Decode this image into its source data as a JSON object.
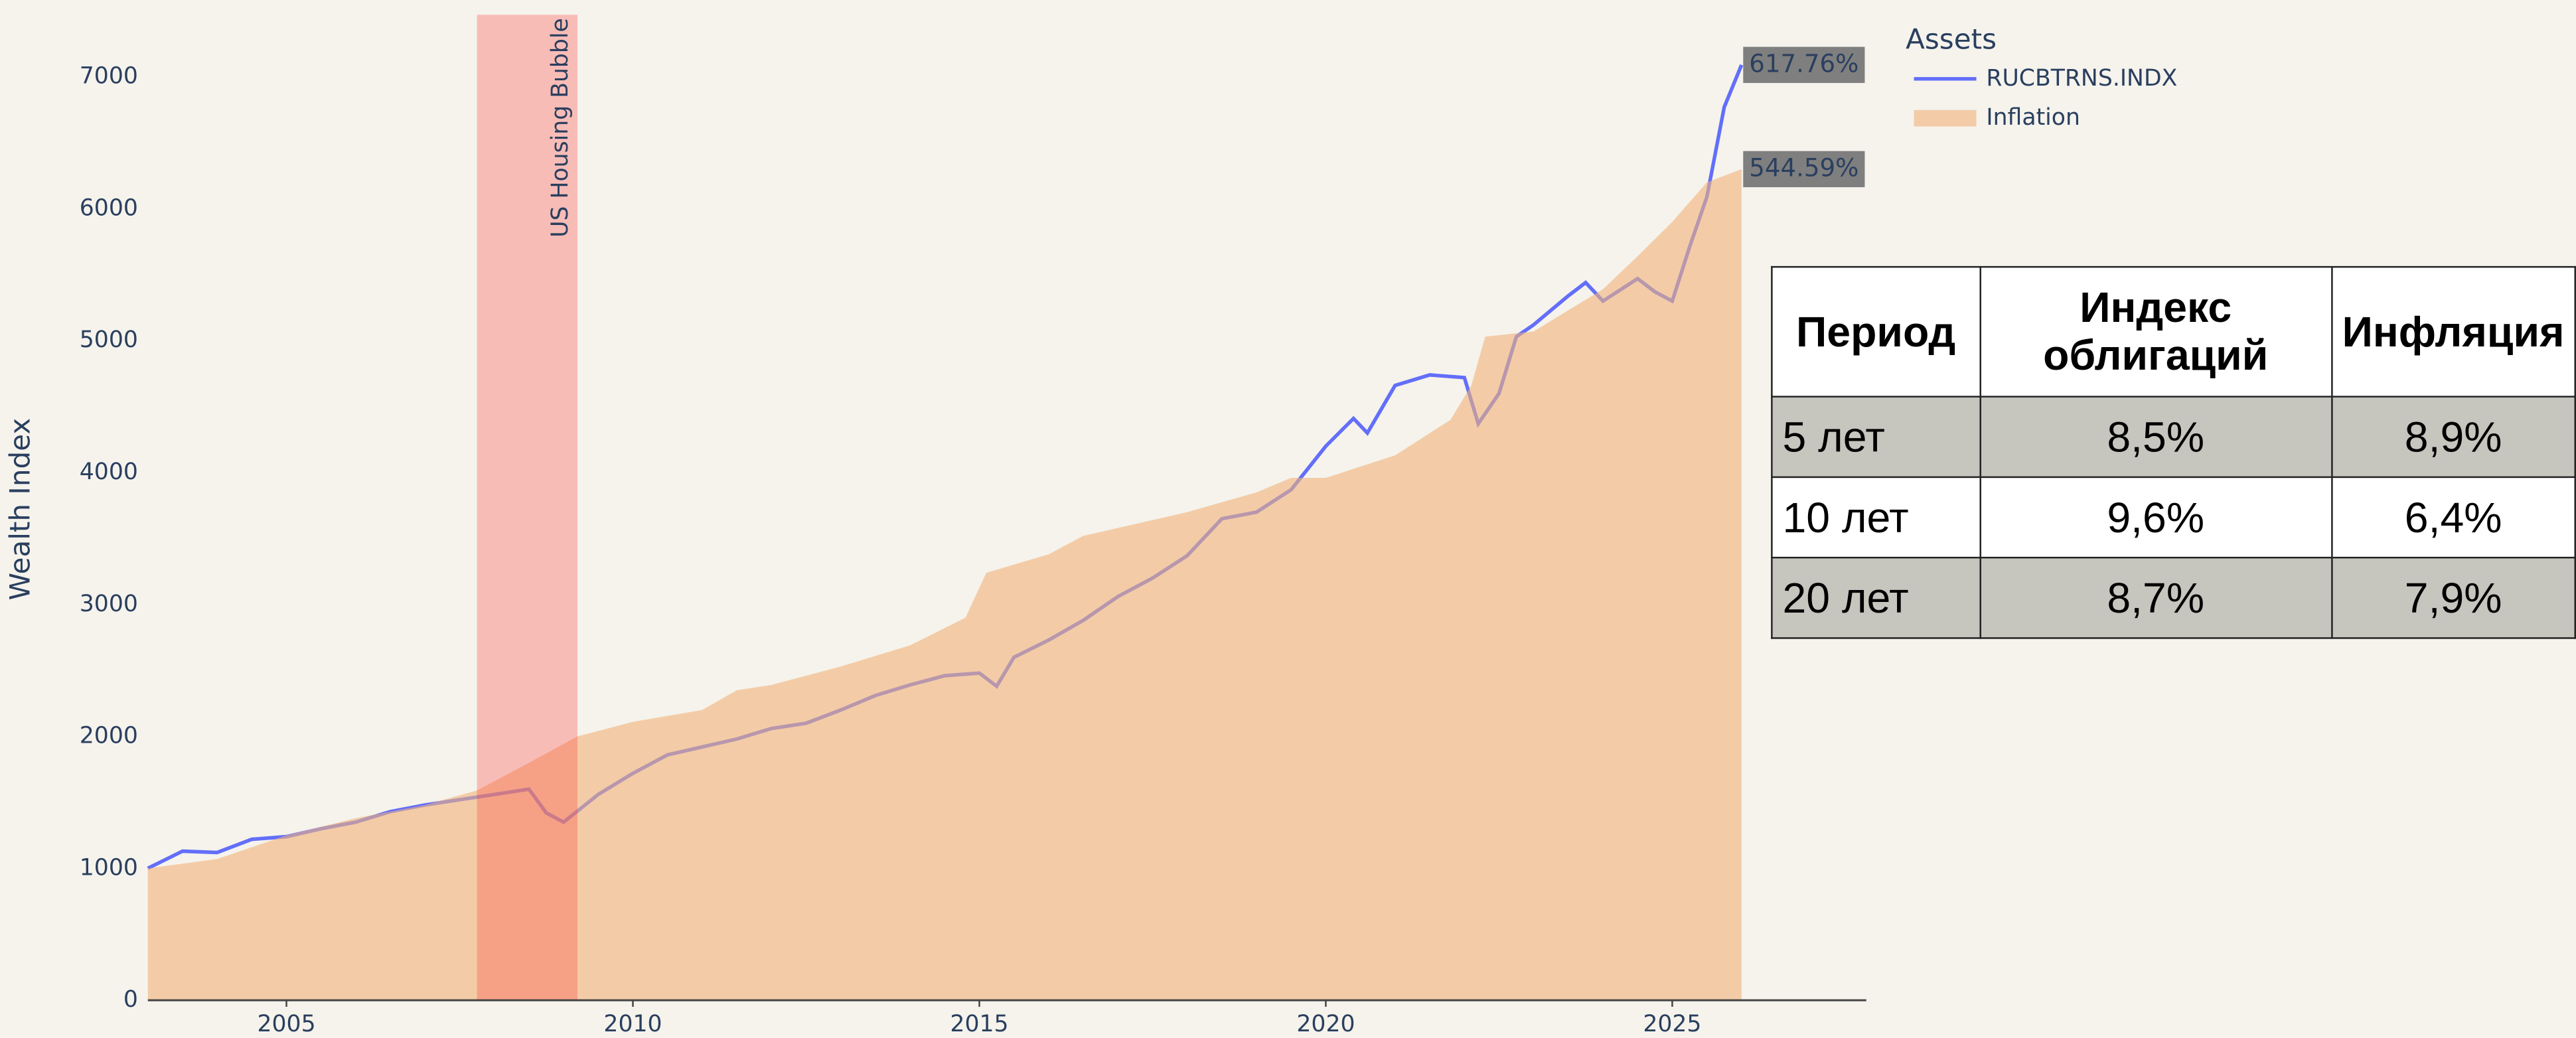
{
  "chart_data": {
    "type": "line",
    "ylabel": "Wealth Index",
    "legend_title": "Assets",
    "xlim": [
      2003,
      2027.8
    ],
    "xticks": [
      2005,
      2010,
      2015,
      2020,
      2025
    ],
    "ylim": [
      0,
      7470
    ],
    "yticks": [
      0,
      1000,
      2000,
      3000,
      4000,
      5000,
      6000,
      7000
    ],
    "grid": false,
    "shapes": [
      {
        "x0": 2007.75,
        "x1": 2009.2,
        "label": "US Housing Bubble",
        "color": "#ff3030"
      }
    ],
    "series": [
      {
        "name": "RUCBTRNS.INDX",
        "kind": "line",
        "color": "#636efa",
        "end_label": "617.76%",
        "x": [
          2003.0,
          2003.5,
          2004.0,
          2004.5,
          2005.0,
          2005.5,
          2006.0,
          2006.5,
          2007.0,
          2007.5,
          2008.0,
          2008.5,
          2008.75,
          2009.0,
          2009.5,
          2010.0,
          2010.5,
          2011.0,
          2011.5,
          2012.0,
          2012.5,
          2013.0,
          2013.5,
          2014.0,
          2014.5,
          2015.0,
          2015.25,
          2015.5,
          2016.0,
          2016.5,
          2017.0,
          2017.5,
          2018.0,
          2018.5,
          2019.0,
          2019.5,
          2020.0,
          2020.4,
          2020.6,
          2021.0,
          2021.5,
          2022.0,
          2022.2,
          2022.5,
          2022.75,
          2023.0,
          2023.5,
          2023.75,
          2024.0,
          2024.5,
          2024.75,
          2025.0,
          2025.25,
          2025.5,
          2025.75,
          2026.0
        ],
        "values": [
          1000,
          1130,
          1120,
          1220,
          1240,
          1300,
          1350,
          1430,
          1480,
          1520,
          1560,
          1600,
          1420,
          1350,
          1560,
          1720,
          1860,
          1920,
          1980,
          2060,
          2100,
          2200,
          2310,
          2390,
          2460,
          2480,
          2380,
          2600,
          2730,
          2880,
          3060,
          3200,
          3370,
          3650,
          3700,
          3870,
          4200,
          4410,
          4300,
          4660,
          4740,
          4720,
          4370,
          4600,
          5030,
          5120,
          5340,
          5440,
          5300,
          5470,
          5370,
          5300,
          5710,
          6090,
          6770,
          7090
        ]
      },
      {
        "name": "Inflation",
        "kind": "area",
        "color": "#f2b37a",
        "end_label": "544.59%",
        "x": [
          2003.0,
          2004.0,
          2005.0,
          2006.0,
          2007.0,
          2007.75,
          2008.5,
          2009.2,
          2010.0,
          2011.0,
          2011.5,
          2012.0,
          2013.0,
          2014.0,
          2014.8,
          2015.1,
          2016.0,
          2016.5,
          2017.0,
          2018.0,
          2019.0,
          2019.5,
          2020.0,
          2021.0,
          2021.8,
          2022.1,
          2022.3,
          2023.0,
          2023.5,
          2024.0,
          2024.5,
          2025.0,
          2025.5,
          2026.0
        ],
        "values": [
          1000,
          1070,
          1250,
          1380,
          1480,
          1590,
          1800,
          2000,
          2110,
          2200,
          2350,
          2390,
          2530,
          2690,
          2900,
          3240,
          3380,
          3520,
          3580,
          3700,
          3850,
          3960,
          3960,
          4130,
          4400,
          4660,
          5030,
          5070,
          5230,
          5390,
          5640,
          5900,
          6200,
          6300
        ]
      }
    ]
  },
  "table": {
    "header": [
      "Период",
      "Индекс облигаций",
      "Инфляция"
    ],
    "rows": [
      [
        "5 лет",
        "8,5%",
        "8,9%"
      ],
      [
        "10 лет",
        "9,6%",
        "6,4%"
      ],
      [
        "20 лет",
        "8,7%",
        "7,9%"
      ]
    ]
  }
}
